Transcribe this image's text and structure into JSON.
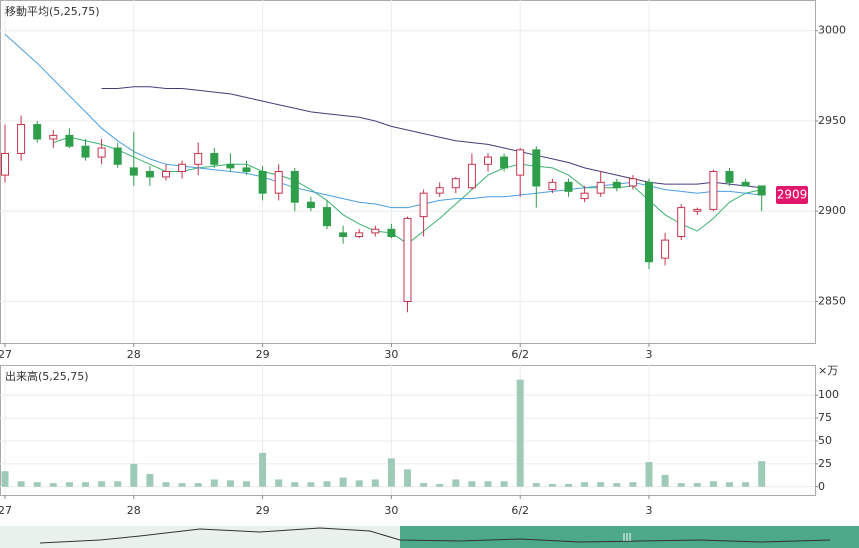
{
  "chart_data": [
    {
      "type": "candlestick",
      "title": "移動平均(5,25,75)",
      "categories": [
        "27",
        null,
        null,
        null,
        null,
        null,
        null,
        null,
        "28",
        null,
        null,
        null,
        null,
        null,
        null,
        null,
        "29",
        null,
        null,
        null,
        null,
        null,
        null,
        null,
        "30",
        null,
        null,
        null,
        null,
        null,
        null,
        null,
        "6/2",
        null,
        null,
        null,
        null,
        null,
        null,
        null,
        "3",
        null,
        null,
        null,
        null,
        null,
        null,
        null
      ],
      "open": [
        2920,
        2932,
        2948,
        2940,
        2942,
        2936,
        2930,
        2935,
        2924,
        2922,
        2919,
        2922,
        2926,
        2932,
        2926,
        2924,
        2922,
        2910,
        2922,
        2905,
        2902,
        2888,
        2886,
        2888,
        2890,
        2850,
        2897,
        2910,
        2913,
        2913,
        2926,
        2930,
        2920,
        2934,
        2912,
        2916,
        2907,
        2910,
        2916,
        2914,
        2916,
        2874,
        2886,
        2900,
        2901,
        2922,
        2916,
        2914
      ],
      "high": [
        2948,
        2953,
        2950,
        2945,
        2946,
        2940,
        2940,
        2938,
        2944,
        2925,
        2926,
        2928,
        2938,
        2935,
        2932,
        2928,
        2925,
        2926,
        2924,
        2908,
        2906,
        2892,
        2890,
        2892,
        2893,
        2897,
        2912,
        2916,
        2919,
        2932,
        2932,
        2932,
        2935,
        2936,
        2918,
        2918,
        2914,
        2922,
        2918,
        2920,
        2918,
        2888,
        2904,
        2902,
        2923,
        2924,
        2918,
        2914
      ],
      "low": [
        2916,
        2928,
        2938,
        2935,
        2935,
        2928,
        2926,
        2924,
        2914,
        2914,
        2917,
        2918,
        2920,
        2924,
        2922,
        2920,
        2906,
        2906,
        2900,
        2900,
        2890,
        2882,
        2885,
        2886,
        2885,
        2844,
        2886,
        2908,
        2910,
        2912,
        2922,
        2922,
        2908,
        2902,
        2910,
        2908,
        2905,
        2908,
        2911,
        2912,
        2868,
        2870,
        2884,
        2898,
        2900,
        2914,
        2914,
        2900
      ],
      "close": [
        2932,
        2948,
        2940,
        2942,
        2936,
        2930,
        2935,
        2926,
        2920,
        2919,
        2922,
        2926,
        2932,
        2926,
        2924,
        2922,
        2910,
        2922,
        2905,
        2902,
        2892,
        2886,
        2888,
        2890,
        2886,
        2896,
        2910,
        2913,
        2918,
        2926,
        2930,
        2924,
        2934,
        2914,
        2916,
        2911,
        2910,
        2916,
        2913,
        2918,
        2872,
        2884,
        2902,
        2901,
        2922,
        2916,
        2914,
        2909
      ],
      "up_color": "#c8334c",
      "down_color": "#2e9e4a",
      "series": [
        {
          "color": "#3cb371",
          "values": [
            null,
            null,
            null,
            2938,
            2941,
            2939,
            2937,
            2934,
            2930,
            2926,
            2922,
            2922,
            2924,
            2925,
            2926,
            2926,
            2922,
            2920,
            2917,
            2912,
            2906,
            2898,
            2893,
            2889,
            2888,
            2882,
            2889,
            2896,
            2904,
            2912,
            2920,
            2924,
            2926,
            2925,
            2924,
            2920,
            2913,
            2913,
            2913,
            2914,
            2906,
            2898,
            2893,
            2889,
            2896,
            2905,
            2910,
            2912
          ]
        },
        {
          "color": "#4a9ee0",
          "values": [
            2998,
            2990,
            2982,
            2973,
            2964,
            2955,
            2946,
            2939,
            2933,
            2929,
            2926,
            2925,
            2924,
            2923,
            2922,
            2921,
            2919,
            2916,
            2913,
            2911,
            2909,
            2907,
            2905,
            2904,
            2902,
            2902,
            2904,
            2906,
            2907,
            2907,
            2908,
            2908,
            2909,
            2910,
            2911,
            2912,
            2913,
            2914,
            2915,
            2916,
            2914,
            2912,
            2911,
            2910,
            2911,
            2911,
            2910,
            2909
          ]
        },
        {
          "color": "#4b3a7a",
          "values": [
            null,
            null,
            null,
            null,
            null,
            null,
            2968,
            2968,
            2969,
            2969,
            2968,
            2968,
            2967,
            2966,
            2965,
            2963,
            2961,
            2959,
            2957,
            2955,
            2954,
            2953,
            2952,
            2950,
            2947,
            2945,
            2943,
            2941,
            2939,
            2938,
            2937,
            2935,
            2933,
            2931,
            2929,
            2927,
            2924,
            2922,
            2920,
            2918,
            2916,
            2915,
            2915,
            2915,
            2916,
            2915,
            2914,
            2913
          ]
        }
      ],
      "last_price": 2909,
      "last_price_color": "#e0156b",
      "ylim": [
        2827,
        3017
      ],
      "yticks": [
        2850,
        2900,
        2950,
        3000
      ],
      "grid": true
    },
    {
      "type": "bar",
      "title": "出来高(5,25,75)",
      "unit_label": "×万",
      "categories": [
        "27",
        null,
        null,
        null,
        null,
        null,
        null,
        null,
        "28",
        null,
        null,
        null,
        null,
        null,
        null,
        null,
        "29",
        null,
        null,
        null,
        null,
        null,
        null,
        null,
        "30",
        null,
        null,
        null,
        null,
        null,
        null,
        null,
        "6/2",
        null,
        null,
        null,
        null,
        null,
        null,
        null,
        "3",
        null,
        null,
        null,
        null,
        null,
        null,
        null
      ],
      "values": [
        17,
        6,
        5,
        4,
        5,
        5,
        6,
        6,
        25,
        14,
        5,
        4,
        4,
        8,
        7,
        6,
        37,
        8,
        5,
        5,
        6,
        10,
        7,
        8,
        31,
        19,
        4,
        3,
        8,
        6,
        6,
        6,
        117,
        4,
        3,
        3,
        5,
        5,
        4,
        5,
        27,
        13,
        4,
        4,
        6,
        5,
        5,
        28
      ],
      "color": "#9fcab8",
      "ylim": [
        -9,
        133
      ],
      "yticks": [
        0,
        25,
        50,
        75,
        100
      ],
      "grid": true
    }
  ]
}
